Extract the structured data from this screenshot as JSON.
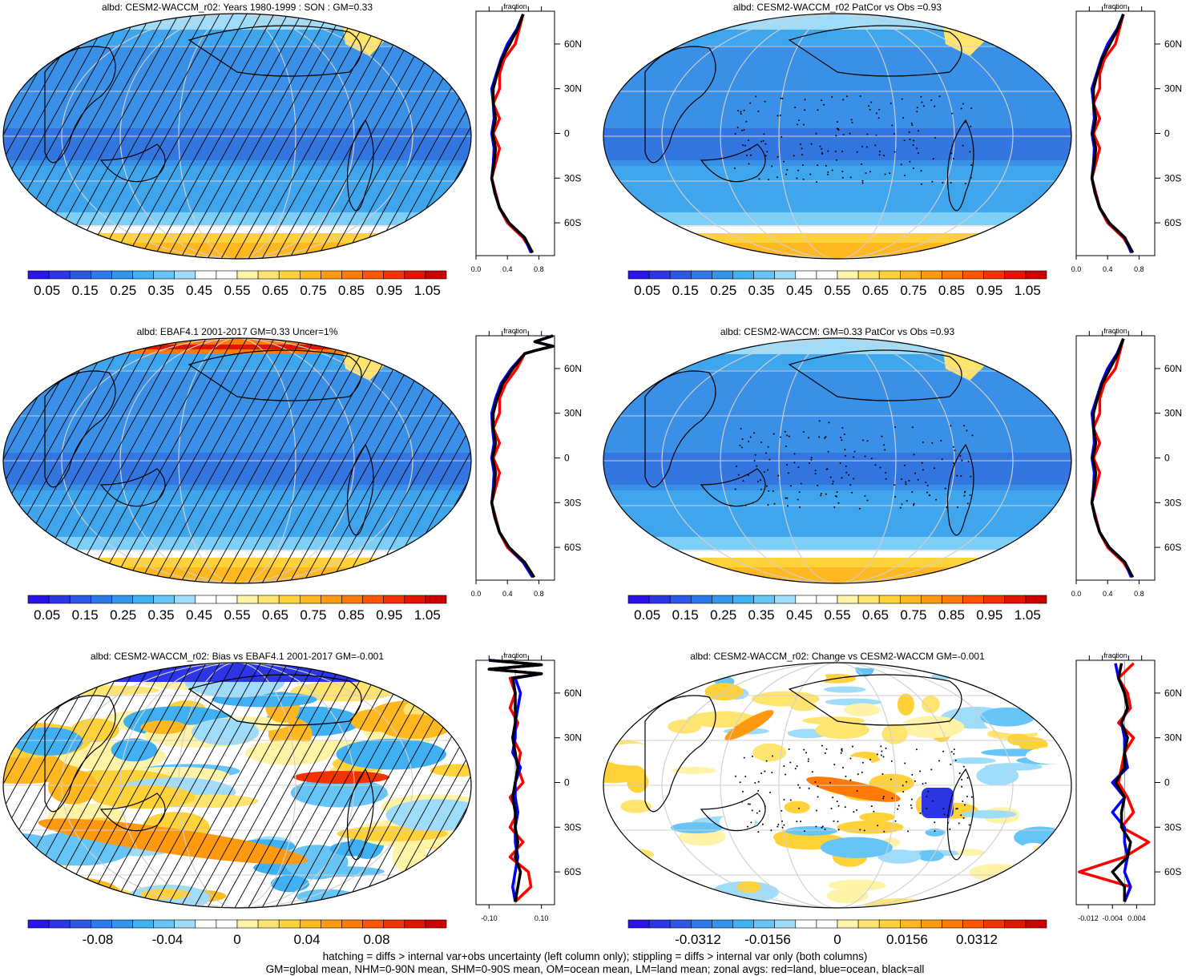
{
  "chart_data": [
    {
      "type": "heatmap",
      "title": "albd: CESM2-WACCM_r02: Years 1980-1999 : SON : GM=0.33",
      "colorbar": {
        "ticks": [
          "0.05",
          "0.15",
          "0.25",
          "0.35",
          "0.45",
          "0.55",
          "0.65",
          "0.75",
          "0.85",
          "0.95",
          "1.05"
        ]
      },
      "field": "mean",
      "overlay": "hatch",
      "zonal": {
        "title": "fraction",
        "xticks": [
          "0.0",
          "0.4",
          "0.8"
        ],
        "xlim": [
          0,
          1.0
        ],
        "yticks": [
          "60N",
          "30N",
          "0",
          "30S",
          "60S"
        ],
        "lat": [
          80,
          70,
          60,
          50,
          40,
          30,
          20,
          10,
          0,
          -10,
          -20,
          -30,
          -40,
          -50,
          -60,
          -70,
          -80
        ],
        "series": [
          {
            "color": "#ff0000",
            "values": [
              0.6,
              0.55,
              0.5,
              0.36,
              0.3,
              0.3,
              0.22,
              0.3,
              0.22,
              0.3,
              0.25,
              0.2,
              0.25,
              0.3,
              0.4,
              0.6,
              0.72
            ]
          },
          {
            "color": "#0000ff",
            "values": [
              0.6,
              0.52,
              0.4,
              0.32,
              0.26,
              0.2,
              0.22,
              0.23,
              0.2,
              0.23,
              0.22,
              0.2,
              0.24,
              0.3,
              0.42,
              0.62,
              0.7
            ]
          },
          {
            "color": "#000000",
            "values": [
              0.6,
              0.53,
              0.43,
              0.33,
              0.27,
              0.22,
              0.22,
              0.25,
              0.21,
              0.25,
              0.23,
              0.2,
              0.24,
              0.3,
              0.42,
              0.62,
              0.72
            ]
          }
        ]
      }
    },
    {
      "type": "heatmap",
      "title": "albd: CESM2-WACCM_r02 PatCor vs Obs =0.93",
      "colorbar": {
        "ticks": [
          "0.05",
          "0.15",
          "0.25",
          "0.35",
          "0.45",
          "0.55",
          "0.65",
          "0.75",
          "0.85",
          "0.95",
          "1.05"
        ]
      },
      "field": "mean",
      "overlay": "stipple",
      "zonal": {
        "title": "fraction",
        "xticks": [
          "0.0",
          "0.4",
          "0.8"
        ],
        "xlim": [
          0,
          1.0
        ],
        "yticks": [
          "60N",
          "30N",
          "0",
          "30S",
          "60S"
        ],
        "lat": [
          80,
          70,
          60,
          50,
          40,
          30,
          20,
          10,
          0,
          -10,
          -20,
          -30,
          -40,
          -50,
          -60,
          -70,
          -80
        ],
        "series": [
          {
            "color": "#ff0000",
            "values": [
              0.6,
              0.55,
              0.5,
              0.36,
              0.3,
              0.3,
              0.22,
              0.3,
              0.22,
              0.3,
              0.25,
              0.2,
              0.25,
              0.3,
              0.4,
              0.6,
              0.72
            ]
          },
          {
            "color": "#0000ff",
            "values": [
              0.6,
              0.52,
              0.4,
              0.32,
              0.26,
              0.2,
              0.22,
              0.23,
              0.2,
              0.23,
              0.22,
              0.2,
              0.24,
              0.3,
              0.42,
              0.62,
              0.7
            ]
          },
          {
            "color": "#000000",
            "values": [
              0.6,
              0.53,
              0.43,
              0.33,
              0.27,
              0.22,
              0.22,
              0.25,
              0.21,
              0.25,
              0.23,
              0.2,
              0.24,
              0.3,
              0.42,
              0.62,
              0.72
            ]
          }
        ]
      }
    },
    {
      "type": "heatmap",
      "title": "albd: EBAF4.1 2001-2017 GM=0.33 Uncer=1%",
      "colorbar": {
        "ticks": [
          "0.05",
          "0.15",
          "0.25",
          "0.35",
          "0.45",
          "0.55",
          "0.65",
          "0.75",
          "0.85",
          "0.95",
          "1.05"
        ]
      },
      "field": "mean",
      "overlay": "hatch",
      "zonal": {
        "title": "fraction",
        "xticks": [
          "0.0",
          "0.4",
          "0.8"
        ],
        "xlim": [
          0,
          1.0
        ],
        "yticks": [
          "60N",
          "30N",
          "0",
          "30S",
          "60S"
        ],
        "lat": [
          82,
          78,
          75,
          72,
          70,
          60,
          50,
          40,
          30,
          20,
          10,
          0,
          -10,
          -20,
          -30,
          -40,
          -50,
          -60,
          -70,
          -80
        ],
        "series": [
          {
            "color": "#ff0000",
            "values": [
              0.98,
              0.75,
              0.98,
              0.75,
              0.62,
              0.52,
              0.38,
              0.3,
              0.3,
              0.22,
              0.3,
              0.22,
              0.3,
              0.25,
              0.2,
              0.25,
              0.3,
              0.4,
              0.6,
              0.74
            ]
          },
          {
            "color": "#0000ff",
            "values": [
              0.98,
              0.75,
              0.98,
              0.75,
              0.62,
              0.45,
              0.32,
              0.25,
              0.2,
              0.21,
              0.23,
              0.2,
              0.23,
              0.22,
              0.2,
              0.24,
              0.3,
              0.42,
              0.6,
              0.72
            ]
          },
          {
            "color": "#000000",
            "values": [
              0.98,
              0.75,
              0.98,
              0.75,
              0.62,
              0.47,
              0.34,
              0.27,
              0.22,
              0.22,
              0.25,
              0.21,
              0.25,
              0.23,
              0.2,
              0.24,
              0.3,
              0.42,
              0.62,
              0.74
            ]
          }
        ]
      }
    },
    {
      "type": "heatmap",
      "title": "albd: CESM2-WACCM: GM=0.33 PatCor vs Obs =0.93",
      "colorbar": {
        "ticks": [
          "0.05",
          "0.15",
          "0.25",
          "0.35",
          "0.45",
          "0.55",
          "0.65",
          "0.75",
          "0.85",
          "0.95",
          "1.05"
        ]
      },
      "field": "mean",
      "overlay": "stipple",
      "zonal": {
        "title": "fraction",
        "xticks": [
          "0.0",
          "0.4",
          "0.8"
        ],
        "xlim": [
          0,
          1.0
        ],
        "yticks": [
          "60N",
          "30N",
          "0",
          "30S",
          "60S"
        ],
        "lat": [
          80,
          70,
          60,
          50,
          40,
          30,
          20,
          10,
          0,
          -10,
          -20,
          -30,
          -40,
          -50,
          -60,
          -70,
          -80
        ],
        "series": [
          {
            "color": "#ff0000",
            "values": [
              0.6,
              0.55,
              0.5,
              0.36,
              0.3,
              0.3,
              0.22,
              0.3,
              0.22,
              0.3,
              0.25,
              0.2,
              0.25,
              0.3,
              0.4,
              0.6,
              0.72
            ]
          },
          {
            "color": "#0000ff",
            "values": [
              0.6,
              0.52,
              0.4,
              0.32,
              0.26,
              0.2,
              0.22,
              0.23,
              0.2,
              0.23,
              0.22,
              0.2,
              0.24,
              0.3,
              0.42,
              0.62,
              0.7
            ]
          },
          {
            "color": "#000000",
            "values": [
              0.6,
              0.53,
              0.43,
              0.33,
              0.27,
              0.22,
              0.22,
              0.25,
              0.21,
              0.25,
              0.23,
              0.2,
              0.24,
              0.3,
              0.42,
              0.62,
              0.72
            ]
          }
        ]
      }
    },
    {
      "type": "heatmap",
      "title": "albd: CESM2-WACCM_r02: Bias vs EBAF4.1 2001-2017  GM=-0.001",
      "colorbar": {
        "ticks": [
          "-0.08",
          "-0.04",
          "0",
          "0.04",
          "0.08"
        ]
      },
      "field": "bias",
      "overlay": "hatch",
      "zonal": {
        "title": "fraction",
        "xticks": [
          "-0.10",
          "0.10"
        ],
        "xlim": [
          -0.15,
          0.15
        ],
        "yticks": [
          "60N",
          "30N",
          "0",
          "30S",
          "60S"
        ],
        "lat": [
          82,
          79,
          76,
          73,
          70,
          60,
          50,
          40,
          30,
          20,
          10,
          0,
          -10,
          -20,
          -30,
          -40,
          -50,
          -60,
          -70,
          -80
        ],
        "series": [
          {
            "color": "#ff0000",
            "values": [
              -0.1,
              0.1,
              -0.1,
              0.1,
              -0.02,
              0.0,
              -0.02,
              0.01,
              -0.01,
              0.02,
              0.01,
              0.03,
              -0.02,
              0.01,
              -0.02,
              0.03,
              -0.02,
              0.05,
              0.06,
              0.0
            ]
          },
          {
            "color": "#0000ff",
            "values": [
              -0.1,
              0.1,
              -0.1,
              0.1,
              0.0,
              0.02,
              0.01,
              0.0,
              0.0,
              -0.01,
              0.02,
              0.0,
              0.0,
              0.01,
              0.0,
              0.0,
              0.01,
              0.0,
              -0.01,
              0.0
            ]
          },
          {
            "color": "#000000",
            "values": [
              -0.1,
              0.1,
              -0.1,
              0.1,
              -0.01,
              0.0,
              0.0,
              0.0,
              -0.01,
              0.0,
              0.01,
              0.0,
              -0.01,
              0.0,
              0.0,
              0.01,
              0.0,
              0.02,
              0.01,
              0.0
            ]
          }
        ]
      }
    },
    {
      "type": "heatmap",
      "title": "albd: CESM2-WACCM_r02: Change vs CESM2-WACCM GM=-0.001",
      "colorbar": {
        "ticks": [
          "-0.0312",
          "-0.0156",
          "0",
          "0.0156",
          "0.0312"
        ]
      },
      "field": "change",
      "overlay": "stipple",
      "zonal": {
        "title": "fraction",
        "xticks": [
          "-0.012",
          "-0.004",
          "0.004"
        ],
        "xlim": [
          -0.016,
          0.01
        ],
        "yticks": [
          "60N",
          "30N",
          "0",
          "30S",
          "60S"
        ],
        "lat": [
          80,
          70,
          60,
          50,
          40,
          30,
          20,
          10,
          0,
          -10,
          -20,
          -30,
          -40,
          -50,
          -60,
          -70,
          -80
        ],
        "series": [
          {
            "color": "#ff0000",
            "values": [
              0.003,
              -0.002,
              0.001,
              0.002,
              -0.002,
              0.003,
              0.0,
              -0.001,
              -0.002,
              0.001,
              0.003,
              -0.001,
              0.008,
              0.0,
              -0.015,
              0.002,
              0.0
            ]
          },
          {
            "color": "#0000ff",
            "values": [
              -0.003,
              -0.002,
              0.0,
              0.001,
              -0.001,
              0.0,
              0.0,
              0.001,
              -0.004,
              0.0,
              -0.004,
              0.0,
              0.0,
              0.001,
              0.0,
              0.002,
              0.0
            ]
          },
          {
            "color": "#000000",
            "values": [
              -0.001,
              -0.002,
              0.0,
              0.001,
              -0.001,
              0.001,
              0.0,
              0.0,
              -0.003,
              0.0,
              -0.001,
              -0.001,
              0.002,
              0.001,
              -0.004,
              0.0,
              0.0
            ]
          }
        ]
      }
    }
  ],
  "footer": {
    "line1": "hatching = diffs > internal var+obs uncertainty (left column only); stippling = diffs > internal var only (both columns)",
    "line2": "GM=global mean, NHM=0-90N mean, SHM=0-90S mean, OM=ocean mean, LM=land mean; zonal avgs: red=land, blue=ocean, black=all"
  }
}
